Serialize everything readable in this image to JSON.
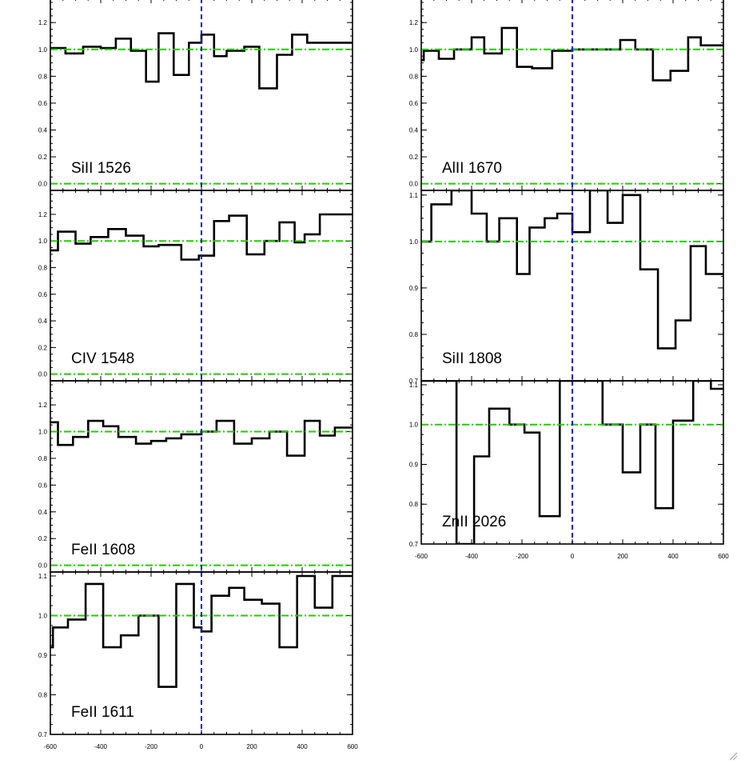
{
  "colors": {
    "spectrum": "#000000",
    "continuum_line": "#22cc00",
    "zero_velocity_line": "#1010dd"
  },
  "chart_data": [
    {
      "type": "line",
      "step": true,
      "label": "SiII 1526",
      "xlim": [
        -600,
        600
      ],
      "ylim": [
        -0.05,
        1.38
      ],
      "yticks": [
        0.0,
        0.2,
        0.4,
        0.6,
        0.8,
        1.0,
        1.2
      ],
      "ytick_labels": [
        "0.0",
        "0.2",
        "0.4",
        "0.6",
        "0.8",
        "1.0",
        "1.2"
      ],
      "show_xtick_labels": false,
      "continuum": [
        0.0,
        1.0
      ],
      "x": [
        -600,
        -540,
        -470,
        -400,
        -340,
        -280,
        -220,
        -170,
        -110,
        -50,
        0,
        50,
        100,
        170,
        230,
        300,
        360,
        420,
        490,
        550
      ],
      "y": [
        1.01,
        0.97,
        1.02,
        1.01,
        1.08,
        0.99,
        0.76,
        1.12,
        0.81,
        1.05,
        1.11,
        0.95,
        0.99,
        1.02,
        0.71,
        0.96,
        1.11,
        1.05,
        1.05,
        1.05
      ]
    },
    {
      "type": "line",
      "step": true,
      "label": "CIV 1548",
      "xlim": [
        -600,
        600
      ],
      "ylim": [
        -0.05,
        1.38
      ],
      "yticks": [
        0.0,
        0.2,
        0.4,
        0.6,
        0.8,
        1.0,
        1.2
      ],
      "ytick_labels": [
        "0.0",
        "0.2",
        "0.4",
        "0.6",
        "0.8",
        "1.0",
        "1.2"
      ],
      "show_xtick_labels": false,
      "continuum": [
        0.0,
        1.0
      ],
      "x": [
        -600,
        -570,
        -500,
        -440,
        -370,
        -300,
        -230,
        -170,
        -80,
        -10,
        50,
        110,
        180,
        250,
        310,
        370,
        410,
        470,
        520,
        580
      ],
      "y": [
        0.93,
        1.07,
        0.98,
        1.03,
        1.09,
        1.04,
        0.96,
        0.97,
        0.86,
        0.89,
        1.15,
        1.19,
        0.9,
        1.0,
        1.14,
        0.99,
        1.05,
        1.2,
        1.2,
        1.2
      ]
    },
    {
      "type": "line",
      "step": true,
      "label": "FeII 1608",
      "xlim": [
        -600,
        600
      ],
      "ylim": [
        -0.05,
        1.38
      ],
      "yticks": [
        0.0,
        0.2,
        0.4,
        0.6,
        0.8,
        1.0,
        1.2
      ],
      "ytick_labels": [
        "0.0",
        "0.2",
        "0.4",
        "0.6",
        "0.8",
        "1.0",
        "1.2"
      ],
      "show_xtick_labels": false,
      "continuum": [
        0.0,
        1.0
      ],
      "x": [
        -600,
        -570,
        -510,
        -450,
        -390,
        -330,
        -260,
        -200,
        -140,
        -80,
        0,
        60,
        130,
        200,
        270,
        340,
        410,
        470,
        530,
        580
      ],
      "y": [
        1.07,
        0.9,
        0.96,
        1.08,
        1.04,
        0.96,
        0.91,
        0.93,
        0.95,
        0.98,
        1.0,
        1.08,
        0.91,
        0.95,
        1.0,
        0.82,
        1.08,
        0.97,
        1.03,
        1.03
      ]
    },
    {
      "type": "line",
      "step": true,
      "label": "FeII 1611",
      "xlim": [
        -600,
        600
      ],
      "ylim": [
        0.7,
        1.11
      ],
      "yticks": [
        0.7,
        0.8,
        0.9,
        1.0,
        1.1
      ],
      "ytick_labels": [
        "0.7",
        "0.8",
        "0.9",
        "1.0",
        "1.1"
      ],
      "show_xtick_labels": true,
      "xticks": [
        -600,
        -400,
        -200,
        0,
        200,
        400,
        600
      ],
      "xtick_labels": [
        "-600",
        "-400",
        "-200",
        "0",
        "200",
        "400",
        "600"
      ],
      "continuum": [
        1.0
      ],
      "x": [
        -600,
        -590,
        -530,
        -460,
        -390,
        -320,
        -250,
        -170,
        -100,
        -30,
        0,
        40,
        110,
        170,
        240,
        310,
        380,
        450,
        520,
        560
      ],
      "y": [
        0.92,
        0.97,
        0.99,
        1.08,
        0.92,
        0.95,
        1.0,
        0.82,
        1.08,
        0.97,
        0.96,
        1.05,
        1.07,
        1.04,
        1.03,
        0.92,
        1.1,
        1.02,
        1.1,
        1.1
      ]
    },
    {
      "type": "line",
      "step": true,
      "label": "AlII 1670",
      "xlim": [
        -600,
        600
      ],
      "ylim": [
        -0.05,
        1.38
      ],
      "yticks": [
        0.0,
        0.2,
        0.4,
        0.6,
        0.8,
        1.0,
        1.2
      ],
      "ytick_labels": [
        "0.0",
        "0.2",
        "0.4",
        "0.6",
        "0.8",
        "1.0",
        "1.2"
      ],
      "show_xtick_labels": false,
      "continuum": [
        0.0,
        1.0
      ],
      "x": [
        -600,
        -590,
        -530,
        -470,
        -400,
        -350,
        -280,
        -220,
        -160,
        -80,
        0,
        80,
        160,
        190,
        250,
        320,
        390,
        460,
        510,
        560
      ],
      "y": [
        0.92,
        0.99,
        0.93,
        1.0,
        1.09,
        0.97,
        1.16,
        0.87,
        0.86,
        0.99,
        1.0,
        1.0,
        1.0,
        1.07,
        1.0,
        0.77,
        0.84,
        1.09,
        1.03,
        1.03
      ]
    },
    {
      "type": "line",
      "step": true,
      "label": "SiII 1808",
      "xlim": [
        -600,
        600
      ],
      "ylim": [
        0.7,
        1.11
      ],
      "yticks": [
        0.7,
        0.8,
        0.9,
        1.0,
        1.1
      ],
      "ytick_labels": [
        "0.7",
        "0.8",
        "0.9",
        "1.0",
        "1.1"
      ],
      "show_xtick_labels": false,
      "continuum": [
        1.0
      ],
      "x": [
        -600,
        -560,
        -480,
        -400,
        -340,
        -290,
        -220,
        -170,
        -110,
        -60,
        0,
        70,
        140,
        200,
        270,
        340,
        410,
        470,
        530,
        580
      ],
      "y": [
        1.0,
        1.08,
        1.11,
        1.06,
        1.0,
        1.05,
        0.93,
        1.03,
        1.05,
        1.06,
        1.02,
        1.11,
        1.04,
        1.1,
        0.94,
        0.77,
        0.83,
        0.99,
        0.93,
        0.93
      ]
    },
    {
      "type": "line",
      "step": true,
      "label": "ZnII 2026",
      "xlim": [
        -600,
        600
      ],
      "ylim": [
        0.7,
        1.11
      ],
      "yticks": [
        0.7,
        0.8,
        0.9,
        1.0,
        1.1
      ],
      "ytick_labels": [
        "0.7",
        "0.8",
        "0.9",
        "1.0",
        "1.1"
      ],
      "show_xtick_labels": true,
      "xticks": [
        -600,
        -400,
        -200,
        0,
        200,
        400,
        600
      ],
      "xtick_labels": [
        "-600",
        "-400",
        "-200",
        "0",
        "200",
        "400",
        "600"
      ],
      "continuum": [
        1.0
      ],
      "x": [
        -600,
        -460,
        -390,
        -330,
        -250,
        -190,
        -130,
        -50,
        60,
        120,
        200,
        270,
        330,
        400,
        480,
        550
      ],
      "y": [
        1.11,
        0.7,
        0.92,
        1.04,
        1.0,
        0.98,
        0.77,
        1.11,
        1.11,
        1.0,
        0.88,
        1.0,
        0.79,
        1.01,
        1.11,
        1.09
      ]
    }
  ]
}
